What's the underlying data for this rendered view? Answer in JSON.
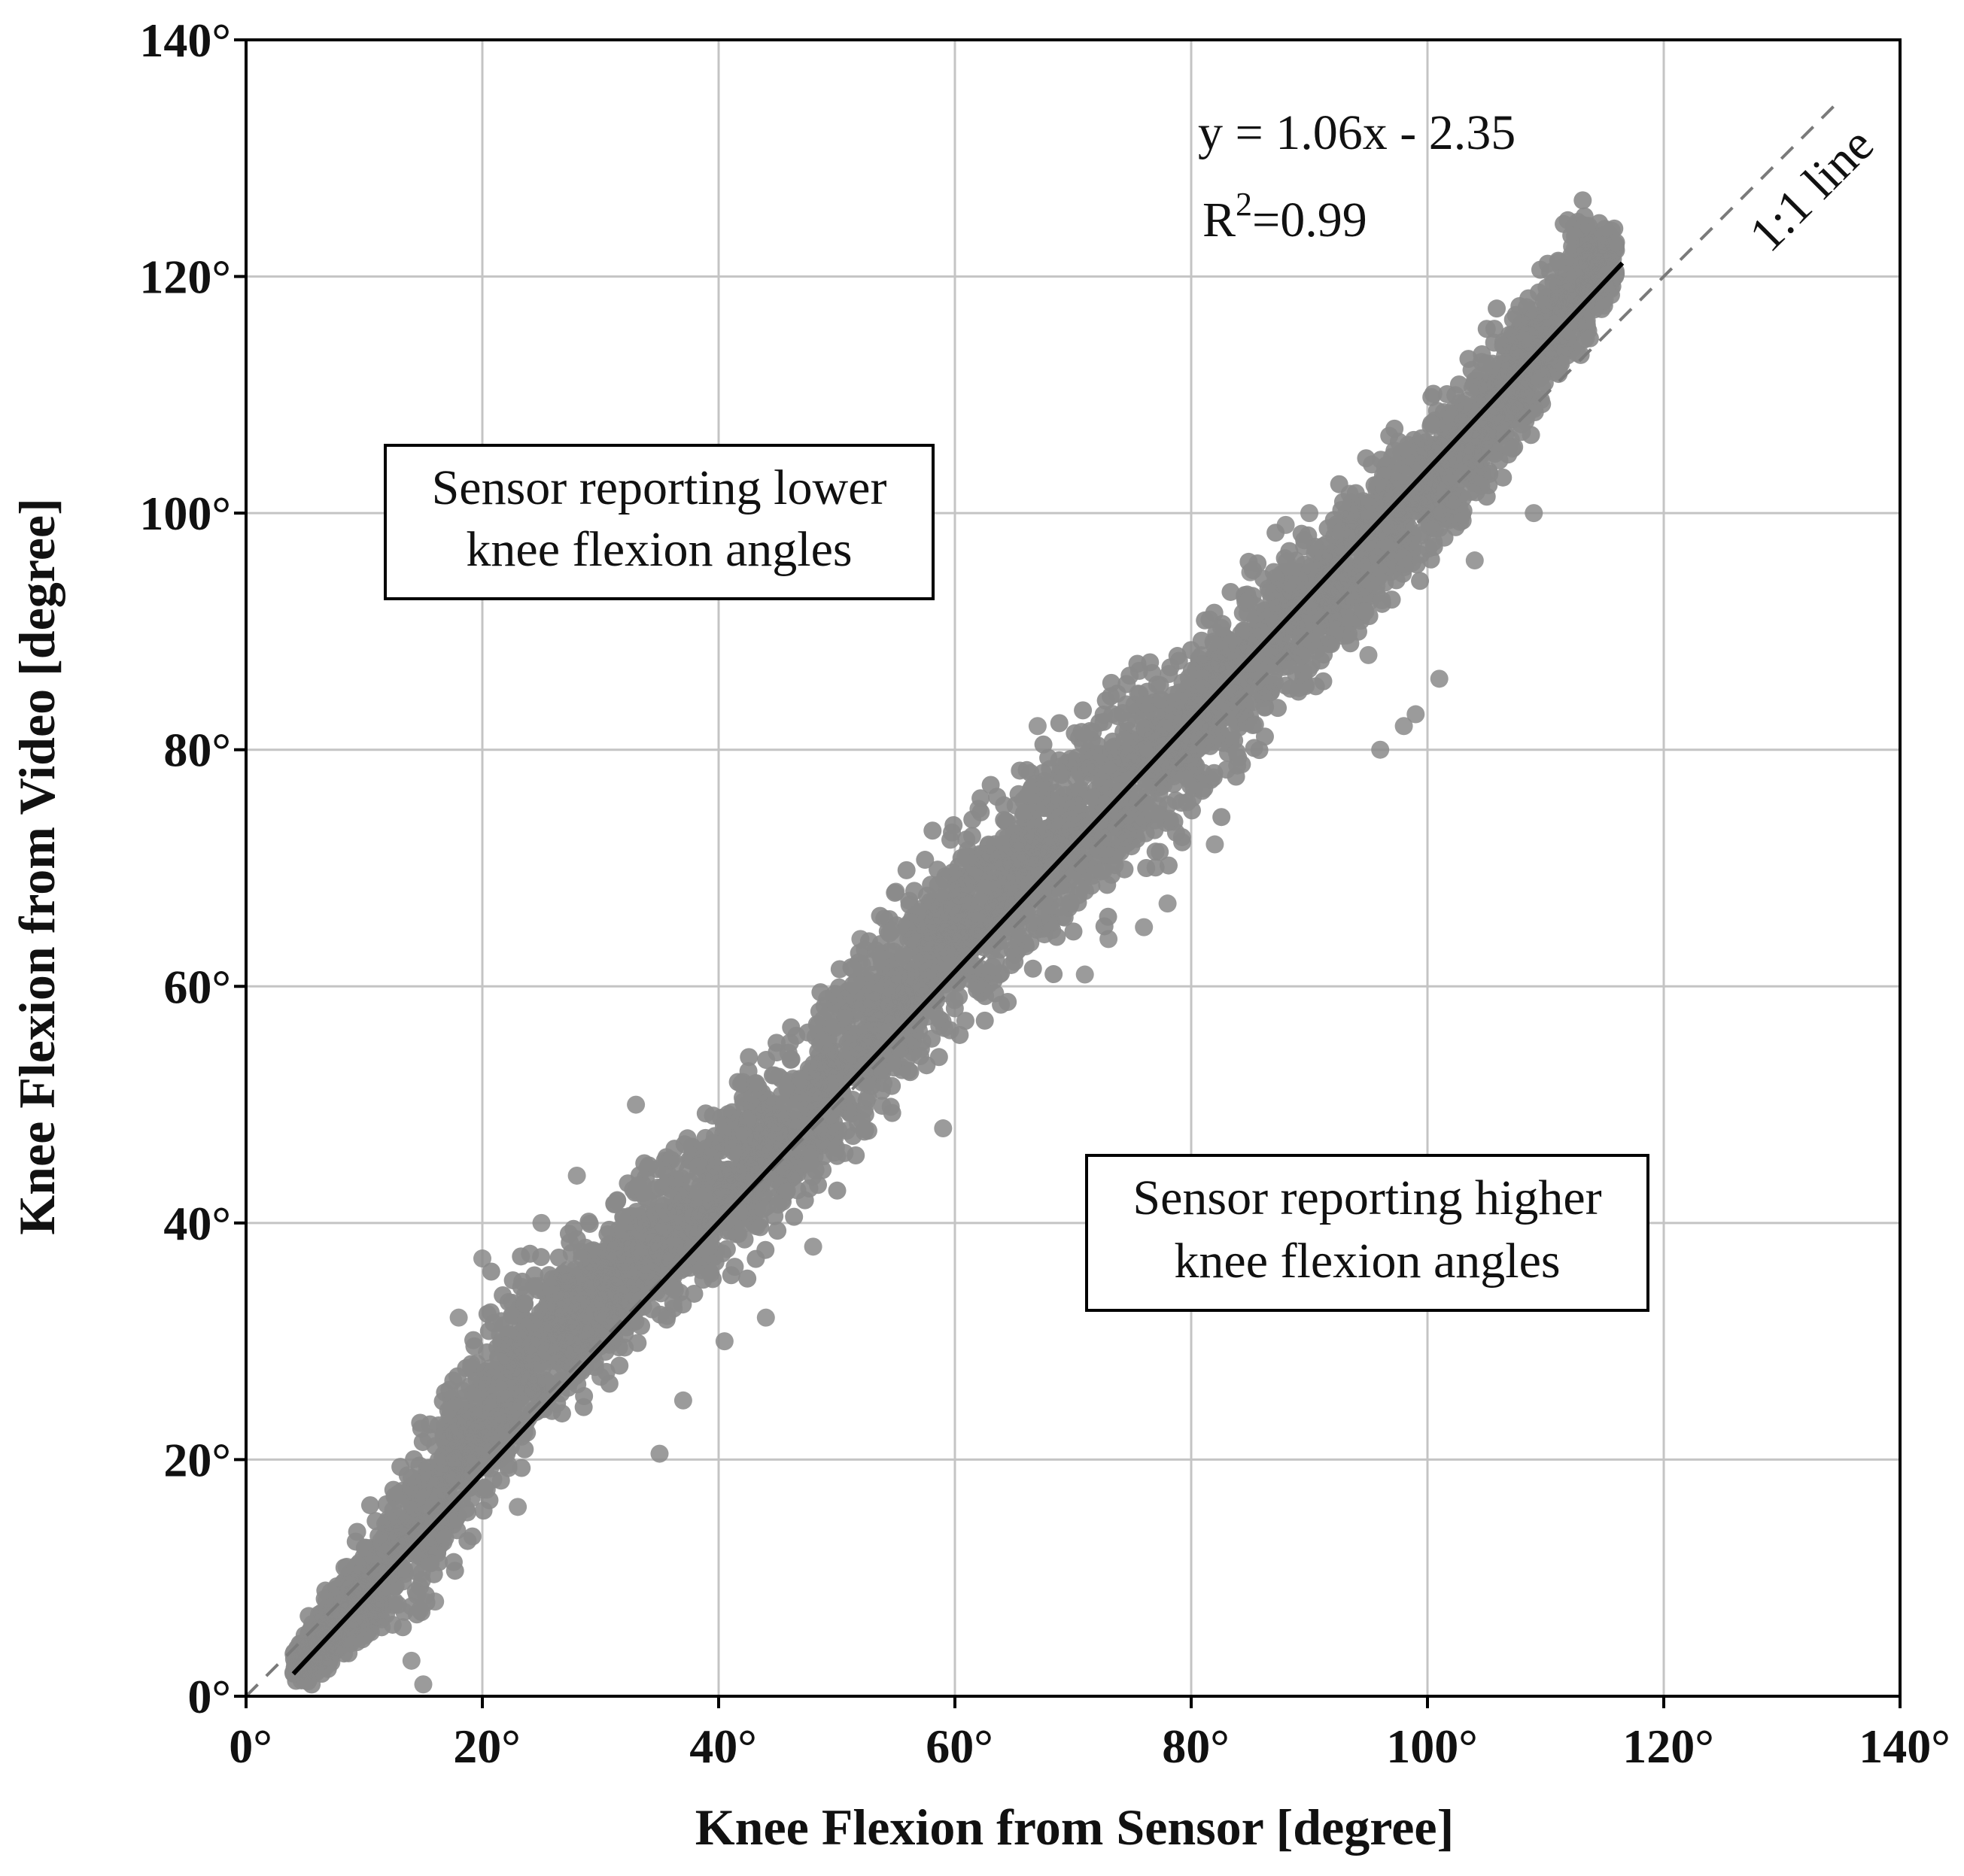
{
  "chart_data": {
    "type": "scatter",
    "xlabel": "Knee Flexion from Sensor [degree]",
    "ylabel": "Knee Flexion from Video [degree]",
    "xlim": [
      0,
      140
    ],
    "ylim": [
      0,
      140
    ],
    "xticks": [
      "0°",
      "20°",
      "40°",
      "60°",
      "80°",
      "100°",
      "120°",
      "140°"
    ],
    "yticks": [
      "0°",
      "20°",
      "40°",
      "60°",
      "80°",
      "100°",
      "120°",
      "140°"
    ],
    "grid": true,
    "points_color": "#8a8a8a",
    "scatter_band": [
      {
        "x": 4,
        "y_low": 0.5,
        "y_high": 4.5
      },
      {
        "x": 10,
        "y_low": 2,
        "y_high": 15
      },
      {
        "x": 15,
        "y_low": 6,
        "y_high": 24
      },
      {
        "x": 20,
        "y_low": 13,
        "y_high": 34
      },
      {
        "x": 25,
        "y_low": 20,
        "y_high": 39
      },
      {
        "x": 30,
        "y_low": 25,
        "y_high": 42
      },
      {
        "x": 35,
        "y_low": 30,
        "y_high": 47
      },
      {
        "x": 40,
        "y_low": 34,
        "y_high": 52
      },
      {
        "x": 45,
        "y_low": 38,
        "y_high": 56
      },
      {
        "x": 50,
        "y_low": 43,
        "y_high": 63
      },
      {
        "x": 55,
        "y_low": 49,
        "y_high": 69
      },
      {
        "x": 60,
        "y_low": 55,
        "y_high": 74
      },
      {
        "x": 65,
        "y_low": 59,
        "y_high": 79
      },
      {
        "x": 70,
        "y_low": 63,
        "y_high": 84
      },
      {
        "x": 75,
        "y_low": 67,
        "y_high": 88
      },
      {
        "x": 80,
        "y_low": 72,
        "y_high": 92
      },
      {
        "x": 85,
        "y_low": 78,
        "y_high": 96
      },
      {
        "x": 90,
        "y_low": 84,
        "y_high": 101
      },
      {
        "x": 95,
        "y_low": 89,
        "y_high": 106
      },
      {
        "x": 100,
        "y_low": 95,
        "y_high": 110
      },
      {
        "x": 105,
        "y_low": 100,
        "y_high": 116
      },
      {
        "x": 110,
        "y_low": 107,
        "y_high": 123
      },
      {
        "x": 113,
        "y_low": 112,
        "y_high": 127
      },
      {
        "x": 116,
        "y_low": 118,
        "y_high": 125
      }
    ],
    "outliers": [
      [
        40.5,
        30
      ],
      [
        37,
        25
      ],
      [
        35,
        20.5
      ],
      [
        14,
        3
      ],
      [
        15,
        1
      ],
      [
        16,
        8
      ],
      [
        85,
        95
      ],
      [
        90,
        100
      ],
      [
        82,
        72
      ],
      [
        76,
        65
      ],
      [
        98,
        82
      ],
      [
        95,
        88
      ],
      [
        48,
        38
      ],
      [
        44,
        32
      ],
      [
        28,
        44
      ],
      [
        33,
        50
      ],
      [
        59,
        48
      ],
      [
        52,
        64
      ],
      [
        67,
        82
      ],
      [
        71,
        61
      ],
      [
        88,
        99
      ],
      [
        104,
        96
      ],
      [
        109,
        100
      ],
      [
        62,
        75
      ],
      [
        55,
        68
      ],
      [
        20,
        37
      ],
      [
        18,
        32
      ],
      [
        25,
        40
      ],
      [
        23,
        16
      ],
      [
        30,
        27
      ],
      [
        96,
        80
      ],
      [
        99,
        83
      ],
      [
        101,
        86
      ],
      [
        78,
        67
      ],
      [
        73,
        64
      ]
    ],
    "regression": {
      "label": "y = 1.06x - 2.35",
      "r2_label": "R",
      "r2_exponent": "2",
      "r2_value": "=0.99",
      "slope": 1.06,
      "intercept": -2.35,
      "x_range": [
        4,
        116.5
      ]
    },
    "identity_line": {
      "label": "1:1 line",
      "x_range": [
        0,
        135
      ]
    },
    "annotations": [
      {
        "lines": [
          "Sensor reporting lower",
          "knee flexion angles"
        ]
      },
      {
        "lines": [
          "Sensor reporting higher",
          "knee flexion angles"
        ]
      }
    ]
  }
}
